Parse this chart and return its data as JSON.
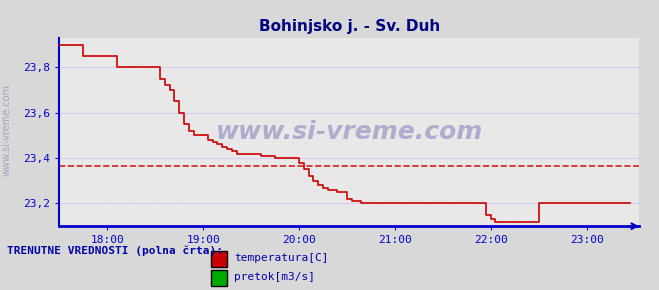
{
  "title": "Bohinjsko j. - Sv. Duh",
  "title_color": "#000080",
  "title_fontsize": 11,
  "bg_color": "#d8d8d8",
  "plot_bg_color": "#e8e8e8",
  "grid_color_major": "#c8c8ff",
  "grid_color_minor": "#ffd8d8",
  "xlabel": "",
  "ylabel": "",
  "ytick_color": "#000080",
  "xtick_color": "#000080",
  "axis_color": "#0000cc",
  "watermark_text": "www.si-vreme.com",
  "watermark_color": "#000080",
  "legend_label_color": "#0000aa",
  "legend_title": "TRENUTNE VREDNOSTI (polna črta):",
  "temp_color": "#cc0000",
  "pretok_color": "#00aa00",
  "avg_line_color": "#cc0000",
  "avg_line_value": 23.365,
  "ylim": [
    23.1,
    23.93
  ],
  "yticks": [
    23.2,
    23.4,
    23.6,
    23.8
  ],
  "xlim_start": 17.5,
  "xlim_end": 23.55,
  "xtick_positions": [
    18.0,
    19.0,
    20.0,
    21.0,
    22.0,
    23.0
  ],
  "xtick_labels": [
    "18:00",
    "19:00",
    "20:00",
    "21:00",
    "22:00",
    "23:00"
  ],
  "temp_x": [
    17.5,
    17.55,
    17.6,
    17.7,
    17.75,
    17.9,
    17.95,
    18.0,
    18.05,
    18.1,
    18.15,
    18.2,
    18.25,
    18.3,
    18.5,
    18.55,
    18.6,
    18.65,
    18.7,
    18.75,
    18.8,
    18.85,
    18.9,
    18.95,
    19.0,
    19.05,
    19.1,
    19.15,
    19.2,
    19.25,
    19.3,
    19.35,
    19.5,
    19.6,
    19.7,
    19.75,
    19.8,
    19.85,
    19.9,
    19.95,
    20.0,
    20.05,
    20.1,
    20.15,
    20.2,
    20.25,
    20.3,
    20.35,
    20.4,
    20.5,
    20.55,
    20.6,
    20.65,
    20.7,
    20.75,
    21.0,
    21.1,
    21.5,
    21.6,
    21.7,
    21.9,
    21.95,
    22.0,
    22.05,
    22.1,
    22.5,
    22.6,
    22.7,
    22.8,
    22.9,
    23.0,
    23.1,
    23.2,
    23.3,
    23.4,
    23.45
  ],
  "temp_y": [
    23.9,
    23.9,
    23.9,
    23.9,
    23.85,
    23.85,
    23.85,
    23.85,
    23.85,
    23.8,
    23.8,
    23.8,
    23.8,
    23.8,
    23.8,
    23.75,
    23.72,
    23.7,
    23.65,
    23.6,
    23.55,
    23.52,
    23.5,
    23.5,
    23.5,
    23.48,
    23.47,
    23.46,
    23.45,
    23.44,
    23.43,
    23.42,
    23.42,
    23.41,
    23.41,
    23.4,
    23.4,
    23.4,
    23.4,
    23.4,
    23.38,
    23.35,
    23.32,
    23.3,
    23.28,
    23.27,
    23.26,
    23.26,
    23.25,
    23.22,
    23.21,
    23.21,
    23.2,
    23.2,
    23.2,
    23.2,
    23.2,
    23.2,
    23.2,
    23.2,
    23.2,
    23.15,
    23.13,
    23.12,
    23.12,
    23.2,
    23.2,
    23.2,
    23.2,
    23.2,
    23.2,
    23.2,
    23.2,
    23.2,
    23.2,
    23.2
  ]
}
